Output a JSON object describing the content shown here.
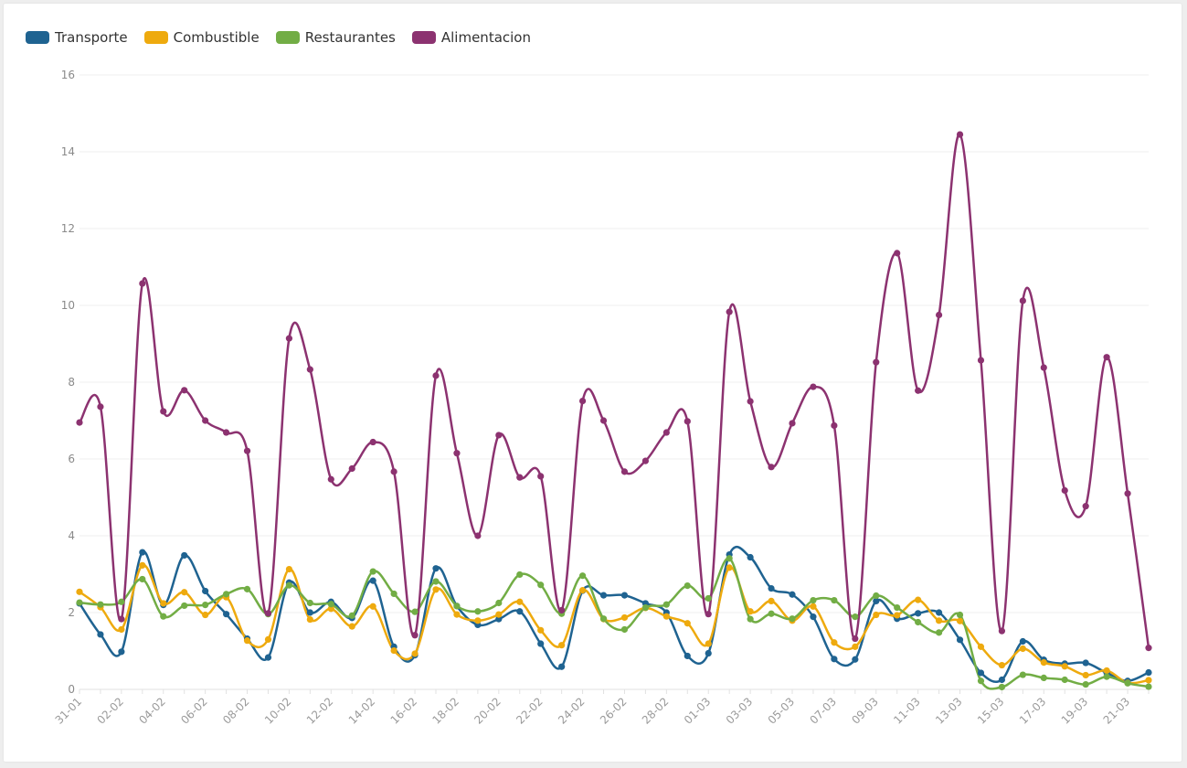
{
  "chart_data": {
    "type": "line",
    "title": "",
    "xlabel": "",
    "ylabel": "",
    "ylim": [
      0,
      16
    ],
    "yticks": [
      0,
      2,
      4,
      6,
      8,
      10,
      12,
      14,
      16
    ],
    "grid": true,
    "legend_position": "top-left",
    "smooth": true,
    "x": [
      "31-01",
      "01-02",
      "02-02",
      "03-02",
      "04-02",
      "05-02",
      "06-02",
      "07-02",
      "08-02",
      "09-02",
      "10-02",
      "11-02",
      "12-02",
      "13-02",
      "14-02",
      "15-02",
      "16-02",
      "17-02",
      "18-02",
      "19-02",
      "20-02",
      "21-02",
      "22-02",
      "23-02",
      "24-02",
      "25-02",
      "26-02",
      "27-02",
      "28-02",
      "29-02",
      "01-03",
      "02-03",
      "03-03",
      "04-03",
      "05-03",
      "06-03",
      "07-03",
      "08-03",
      "09-03",
      "10-03",
      "11-03",
      "12-03",
      "13-03",
      "14-03",
      "15-03",
      "16-03",
      "17-03",
      "18-03",
      "19-03",
      "20-03",
      "21-03",
      "22-03"
    ],
    "x_tick_labels": [
      "31-01",
      "02-02",
      "04-02",
      "06-02",
      "08-02",
      "10-02",
      "12-02",
      "14-02",
      "16-02",
      "18-02",
      "20-02",
      "22-02",
      "24-02",
      "26-02",
      "28-02",
      "01-03",
      "03-03",
      "05-03",
      "07-03",
      "09-03",
      "11-03",
      "13-03",
      "15-03",
      "17-03",
      "19-03",
      "21-03"
    ],
    "series": [
      {
        "name": "Transporte",
        "color": "#1f6391",
        "values": [
          2.24,
          1.43,
          0.98,
          3.57,
          2.2,
          3.49,
          2.56,
          1.96,
          1.32,
          0.83,
          2.78,
          2.0,
          2.28,
          1.86,
          2.83,
          1.11,
          0.89,
          3.15,
          2.17,
          1.68,
          1.83,
          2.03,
          1.19,
          0.59,
          2.57,
          2.45,
          2.45,
          2.24,
          2.0,
          0.87,
          0.94,
          3.51,
          3.44,
          2.63,
          2.47,
          1.89,
          0.79,
          0.78,
          2.3,
          1.84,
          1.98,
          2.0,
          1.29,
          0.43,
          0.25,
          1.25,
          0.77,
          0.67,
          0.69,
          0.43,
          0.22,
          0.44
        ]
      },
      {
        "name": "Combustible",
        "color": "#eeaa0e",
        "values": [
          2.54,
          2.14,
          1.56,
          3.23,
          2.24,
          2.53,
          1.94,
          2.4,
          1.27,
          1.3,
          3.13,
          1.82,
          2.1,
          1.64,
          2.16,
          1.01,
          0.93,
          2.6,
          1.95,
          1.79,
          1.95,
          2.28,
          1.54,
          1.15,
          2.58,
          1.83,
          1.87,
          2.12,
          1.9,
          1.72,
          1.19,
          3.17,
          2.03,
          2.3,
          1.79,
          2.16,
          1.22,
          1.11,
          1.94,
          1.93,
          2.33,
          1.79,
          1.78,
          1.11,
          0.63,
          1.06,
          0.7,
          0.6,
          0.37,
          0.49,
          0.17,
          0.24
        ]
      },
      {
        "name": "Restaurantes",
        "color": "#72ad45",
        "values": [
          2.26,
          2.21,
          2.28,
          2.87,
          1.9,
          2.18,
          2.2,
          2.48,
          2.61,
          1.96,
          2.71,
          2.25,
          2.22,
          1.92,
          3.07,
          2.49,
          2.02,
          2.81,
          2.17,
          2.03,
          2.25,
          2.99,
          2.72,
          1.97,
          2.96,
          1.84,
          1.56,
          2.13,
          2.21,
          2.7,
          2.37,
          3.41,
          1.83,
          1.97,
          1.84,
          2.32,
          2.32,
          1.89,
          2.44,
          2.13,
          1.75,
          1.48,
          1.94,
          0.22,
          0.06,
          0.38,
          0.3,
          0.25,
          0.13,
          0.33,
          0.16,
          0.07
        ]
      },
      {
        "name": "Alimentacion",
        "color": "#8c3270",
        "values": [
          6.95,
          7.36,
          1.83,
          10.57,
          7.24,
          7.79,
          7.0,
          6.69,
          6.21,
          1.98,
          9.14,
          8.33,
          5.47,
          5.75,
          6.44,
          5.67,
          1.41,
          8.17,
          6.15,
          4.0,
          6.62,
          5.52,
          5.55,
          2.06,
          7.51,
          7.0,
          5.67,
          5.95,
          6.69,
          6.98,
          1.96,
          9.83,
          7.5,
          5.79,
          6.93,
          7.88,
          6.87,
          1.32,
          8.52,
          11.36,
          7.78,
          9.75,
          14.45,
          8.57,
          1.52,
          10.12,
          8.38,
          5.18,
          4.77,
          8.65,
          5.1,
          1.08
        ]
      }
    ]
  }
}
